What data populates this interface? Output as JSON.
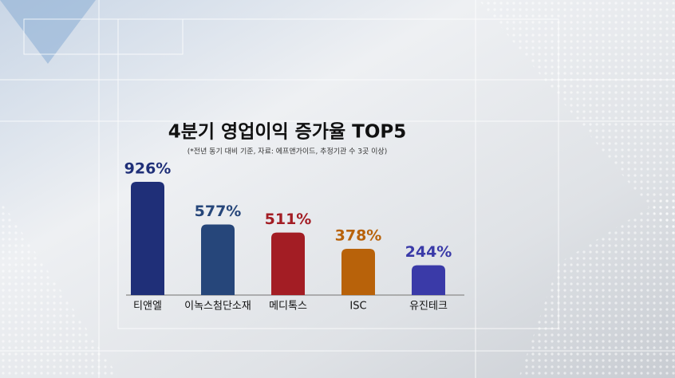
{
  "chart_data": {
    "type": "bar",
    "title": "4분기 영업이익 증가율 TOP5",
    "subtitle": "(*전년 동기 대비 기준, 자료: 에프앤가이드, 추정기관 수 3곳 이상)",
    "categories": [
      "티앤엘",
      "이녹스첨단소재",
      "메디톡스",
      "ISC",
      "유진테크"
    ],
    "values": [
      926,
      577,
      511,
      378,
      244
    ],
    "value_labels": [
      "926%",
      "577%",
      "511%",
      "378%",
      "244%"
    ],
    "colors": [
      "#1f2f78",
      "#26467a",
      "#a31d24",
      "#b8620a",
      "#3a3aa8"
    ]
  }
}
